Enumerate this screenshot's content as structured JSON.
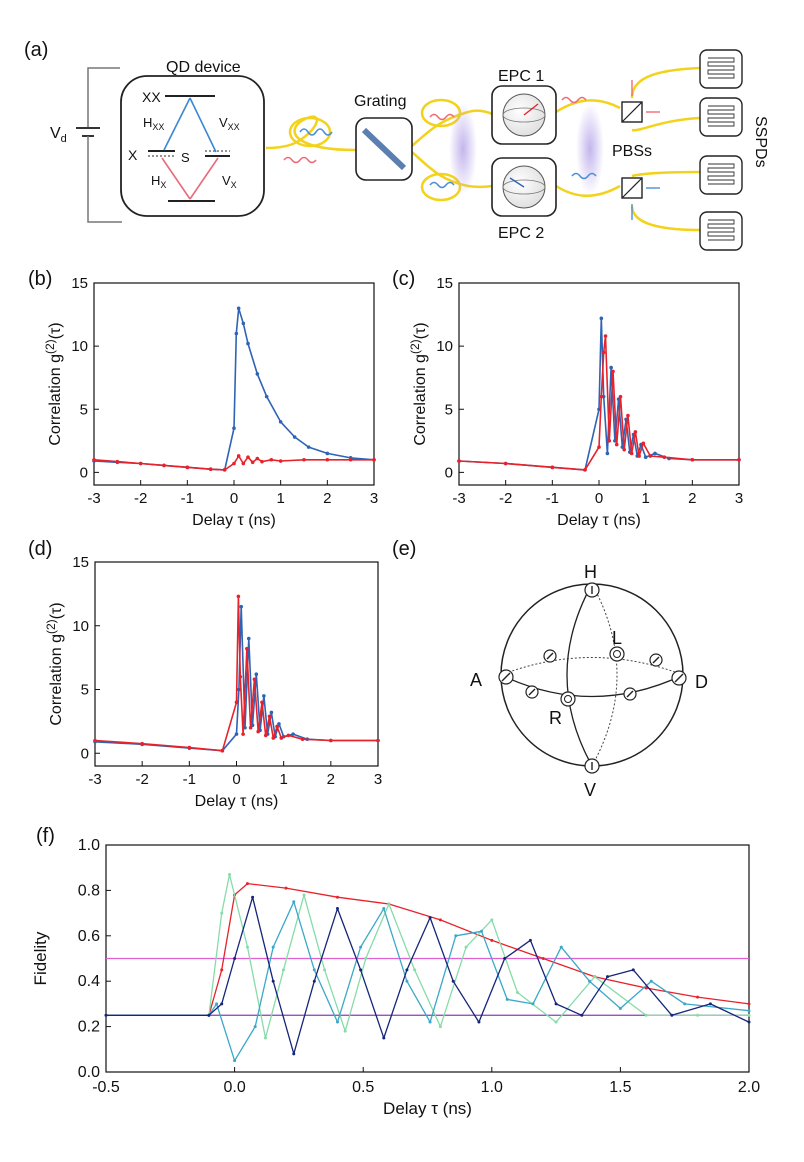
{
  "panel_labels": [
    "(a)",
    "(b)",
    "(c)",
    "(d)",
    "(e)",
    "(f)"
  ],
  "colors": {
    "red": "#e8222a",
    "blue": "#2e63b5",
    "navy": "#16257a",
    "teal": "#3aa8c8",
    "cyan": "#33a0c9",
    "lightgreen": "#86dca9",
    "magenta": "#e060d0",
    "purple": "#8a3fb0",
    "fiber": "#f2d21a"
  },
  "schematic": {
    "qd_device": "QD device",
    "xx": "XX",
    "h_xx": "H",
    "h_xx_sub": "XX",
    "v_xx": "V",
    "v_xx_sub": "XX",
    "x": "X",
    "s": "S",
    "h_x": "H",
    "h_x_sub": "X",
    "v_x": "V",
    "v_x_sub": "X",
    "vd": "V",
    "vd_sub": "d",
    "grating": "Grating",
    "epc1": "EPC 1",
    "epc2": "EPC 2",
    "pbss": "PBSs",
    "sspds": "SSPDs"
  },
  "bloch": {
    "H": "H",
    "V": "V",
    "A": "A",
    "D": "D",
    "L": "L",
    "R": "R"
  },
  "chart_data": [
    {
      "panel": "(b)",
      "type": "scatter",
      "xlabel": "Delay τ (ns)",
      "ylabel_main": "Correlation g",
      "ylabel_sup": "(2)",
      "ylabel_tail": "(τ)",
      "xlim": [
        -3,
        3
      ],
      "ylim": [
        -1,
        15
      ],
      "xticks": [
        -3,
        -2,
        -1,
        0,
        1,
        2,
        3
      ],
      "yticks": [
        0,
        5,
        10,
        15
      ],
      "series": [
        {
          "name": "blue",
          "color": "#2e63b5",
          "x": [
            -3,
            -2.5,
            -2,
            -1.5,
            -1,
            -0.5,
            -0.2,
            0,
            0.05,
            0.1,
            0.2,
            0.3,
            0.5,
            0.7,
            1.0,
            1.3,
            1.6,
            2.0,
            2.5,
            3.0
          ],
          "y": [
            0.9,
            0.8,
            0.7,
            0.55,
            0.4,
            0.25,
            0.2,
            3.5,
            11.0,
            13.0,
            11.8,
            10.2,
            7.8,
            6.0,
            4.0,
            2.8,
            2.0,
            1.5,
            1.15,
            1.0
          ]
        },
        {
          "name": "red",
          "color": "#e8222a",
          "x": [
            -3,
            -2.5,
            -2,
            -1.5,
            -1,
            -0.5,
            -0.2,
            0,
            0.1,
            0.2,
            0.3,
            0.4,
            0.5,
            0.6,
            0.8,
            1.0,
            1.5,
            2.0,
            2.5,
            3.0
          ],
          "y": [
            1.0,
            0.85,
            0.7,
            0.55,
            0.4,
            0.25,
            0.2,
            0.7,
            1.3,
            0.7,
            1.2,
            0.8,
            1.1,
            0.85,
            1.0,
            0.9,
            1.0,
            1.0,
            1.0,
            1.0
          ]
        }
      ]
    },
    {
      "panel": "(c)",
      "type": "scatter",
      "xlabel": "Delay τ (ns)",
      "ylabel_main": "Correlation g",
      "ylabel_sup": "(2)",
      "ylabel_tail": "(τ)",
      "xlim": [
        -3,
        3
      ],
      "ylim": [
        -1,
        15
      ],
      "xticks": [
        -3,
        -2,
        -1,
        0,
        1,
        2,
        3
      ],
      "yticks": [
        0,
        5,
        10,
        15
      ],
      "series": [
        {
          "name": "blue",
          "color": "#2e63b5",
          "x": [
            -3,
            -2,
            -1,
            -0.3,
            0,
            0.05,
            0.1,
            0.18,
            0.26,
            0.34,
            0.42,
            0.5,
            0.58,
            0.66,
            0.74,
            0.82,
            0.9,
            1.0,
            1.2,
            1.5,
            2.0,
            3.0
          ],
          "y": [
            0.9,
            0.7,
            0.4,
            0.2,
            5.0,
            12.2,
            6.0,
            1.5,
            8.3,
            2.5,
            5.8,
            2.0,
            4.2,
            1.6,
            3.0,
            1.3,
            2.2,
            1.2,
            1.5,
            1.1,
            1.0,
            1.0
          ]
        },
        {
          "name": "red",
          "color": "#e8222a",
          "x": [
            -3,
            -2,
            -1,
            -0.3,
            0,
            0.05,
            0.1,
            0.14,
            0.22,
            0.3,
            0.38,
            0.46,
            0.54,
            0.62,
            0.7,
            0.78,
            0.86,
            0.95,
            1.1,
            1.4,
            2.0,
            3.0
          ],
          "y": [
            0.9,
            0.7,
            0.4,
            0.2,
            2.0,
            6.0,
            9.5,
            10.8,
            2.5,
            8.0,
            2.2,
            6.0,
            1.8,
            4.5,
            1.5,
            3.2,
            1.3,
            2.3,
            1.3,
            1.2,
            1.0,
            1.0
          ]
        }
      ]
    },
    {
      "panel": "(d)",
      "type": "scatter",
      "xlabel": "Delay τ (ns)",
      "ylabel_main": "Correlation g",
      "ylabel_sup": "(2)",
      "ylabel_tail": "(τ)",
      "xlim": [
        -3,
        3
      ],
      "ylim": [
        -1,
        15
      ],
      "xticks": [
        -3,
        -2,
        -1,
        0,
        1,
        2,
        3
      ],
      "yticks": [
        0,
        5,
        10,
        15
      ],
      "series": [
        {
          "name": "blue",
          "color": "#2e63b5",
          "x": [
            -3,
            -2,
            -1,
            -0.3,
            0,
            0.05,
            0.1,
            0.18,
            0.26,
            0.34,
            0.42,
            0.5,
            0.58,
            0.66,
            0.74,
            0.82,
            0.9,
            1.0,
            1.2,
            1.5,
            2.0,
            3.0
          ],
          "y": [
            0.9,
            0.7,
            0.4,
            0.2,
            1.5,
            5.0,
            11.5,
            2.0,
            9.0,
            2.2,
            6.2,
            1.8,
            4.5,
            1.5,
            3.2,
            1.3,
            2.3,
            1.3,
            1.5,
            1.1,
            1.0,
            1.0
          ]
        },
        {
          "name": "red",
          "color": "#e8222a",
          "x": [
            -3,
            -2,
            -1,
            -0.3,
            0,
            0.04,
            0.08,
            0.14,
            0.22,
            0.3,
            0.38,
            0.46,
            0.54,
            0.62,
            0.7,
            0.78,
            0.86,
            0.95,
            1.1,
            1.4,
            2.0,
            3.0
          ],
          "y": [
            1.0,
            0.75,
            0.45,
            0.2,
            4.0,
            12.3,
            6.0,
            1.5,
            8.2,
            2.0,
            5.8,
            1.7,
            4.0,
            1.4,
            2.9,
            1.2,
            2.1,
            1.2,
            1.4,
            1.1,
            1.0,
            1.0
          ]
        }
      ]
    },
    {
      "panel": "(f)",
      "type": "line",
      "xlabel": "Delay τ (ns)",
      "ylabel": "Fidelity",
      "xlim": [
        -0.5,
        2.0
      ],
      "ylim": [
        0.0,
        1.0
      ],
      "xticks": [
        -0.5,
        0.0,
        0.5,
        1.0,
        1.5,
        2.0
      ],
      "yticks": [
        0.0,
        0.2,
        0.4,
        0.6,
        0.8,
        1.0
      ],
      "hlines": [
        {
          "y": 0.5,
          "color": "#e060d0"
        },
        {
          "y": 0.25,
          "color": "#8a3fb0"
        }
      ],
      "series": [
        {
          "name": "red envelope",
          "color": "#e8222a",
          "x": [
            -0.5,
            -0.1,
            -0.05,
            0.0,
            0.05,
            0.2,
            0.4,
            0.6,
            0.8,
            1.0,
            1.2,
            1.4,
            1.6,
            1.8,
            2.0
          ],
          "y": [
            0.25,
            0.25,
            0.45,
            0.78,
            0.83,
            0.81,
            0.77,
            0.74,
            0.67,
            0.58,
            0.5,
            0.42,
            0.37,
            0.33,
            0.3
          ]
        },
        {
          "name": "light green oscillation",
          "color": "#86dca9",
          "x": [
            -0.5,
            -0.1,
            -0.05,
            -0.02,
            0.05,
            0.12,
            0.19,
            0.27,
            0.35,
            0.43,
            0.51,
            0.6,
            0.7,
            0.8,
            0.9,
            1.0,
            1.1,
            1.25,
            1.4,
            1.6,
            1.8,
            2.0
          ],
          "y": [
            0.25,
            0.25,
            0.7,
            0.87,
            0.55,
            0.15,
            0.45,
            0.78,
            0.45,
            0.18,
            0.5,
            0.74,
            0.45,
            0.2,
            0.55,
            0.67,
            0.35,
            0.22,
            0.42,
            0.25,
            0.25,
            0.25
          ]
        },
        {
          "name": "teal oscillation",
          "color": "#3aa8c8",
          "x": [
            -0.5,
            -0.1,
            -0.07,
            0.0,
            0.08,
            0.15,
            0.23,
            0.31,
            0.4,
            0.49,
            0.58,
            0.67,
            0.76,
            0.86,
            0.96,
            1.06,
            1.16,
            1.27,
            1.38,
            1.5,
            1.62,
            1.75,
            2.0
          ],
          "y": [
            0.25,
            0.25,
            0.3,
            0.05,
            0.2,
            0.55,
            0.75,
            0.45,
            0.22,
            0.55,
            0.72,
            0.4,
            0.22,
            0.6,
            0.62,
            0.32,
            0.3,
            0.55,
            0.4,
            0.28,
            0.4,
            0.3,
            0.27
          ]
        },
        {
          "name": "navy oscillation",
          "color": "#16257a",
          "x": [
            -0.5,
            -0.1,
            -0.05,
            0.0,
            0.07,
            0.15,
            0.23,
            0.31,
            0.4,
            0.49,
            0.58,
            0.67,
            0.76,
            0.85,
            0.95,
            1.05,
            1.15,
            1.25,
            1.35,
            1.45,
            1.55,
            1.7,
            1.85,
            2.0
          ],
          "y": [
            0.25,
            0.25,
            0.3,
            0.5,
            0.77,
            0.4,
            0.08,
            0.4,
            0.72,
            0.45,
            0.15,
            0.45,
            0.68,
            0.4,
            0.22,
            0.5,
            0.58,
            0.3,
            0.25,
            0.42,
            0.45,
            0.25,
            0.3,
            0.22
          ]
        }
      ]
    }
  ]
}
